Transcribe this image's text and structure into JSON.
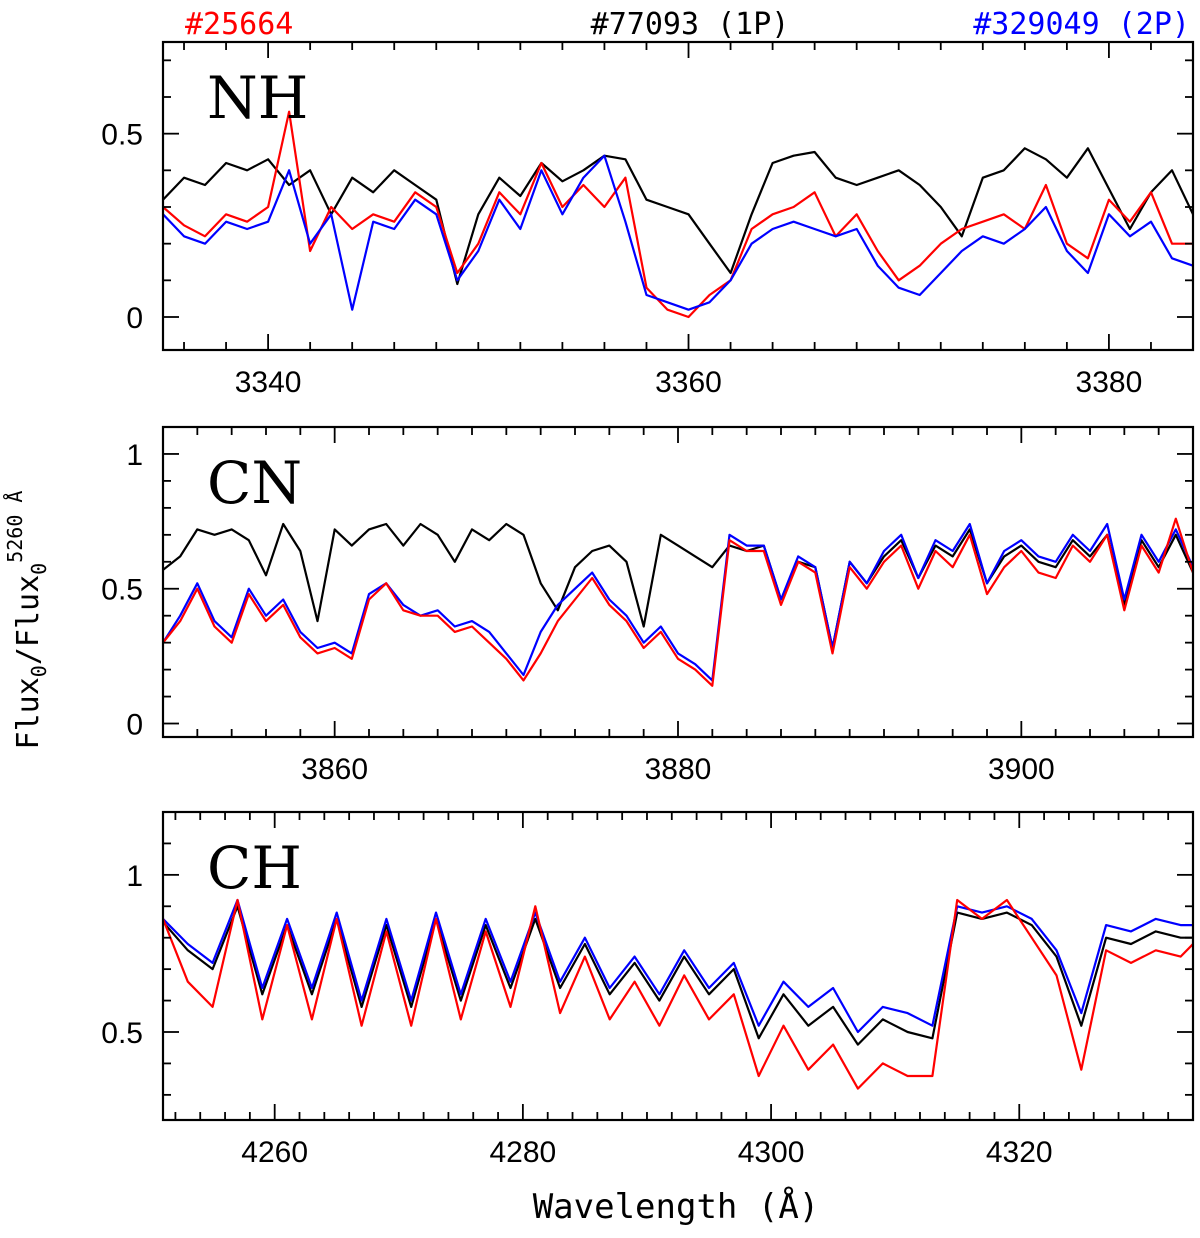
{
  "legend": [
    {
      "name": "#25664",
      "color": "#ff0000"
    },
    {
      "name": "#77093 (1P)",
      "color": "#000000"
    },
    {
      "name": "#329049 (2P)",
      "color": "#0000ff"
    }
  ],
  "ylabel": "Flux0/Flux0 5260 Å",
  "ylabel_parts": {
    "a": "Flux",
    "sub1": "0",
    "slash": "/Flux",
    "sub2": "0",
    "sup": "5260 Å"
  },
  "xlabel": "Wavelength (Å)",
  "chart_data": [
    {
      "type": "line",
      "label": "NH",
      "xlim": [
        3335,
        3384
      ],
      "ylim": [
        -0.09,
        0.75
      ],
      "xticks_major": [
        3340,
        3360,
        3380
      ],
      "xtick_labels": [
        "3340",
        "3360",
        "3380"
      ],
      "xtick_minor_step": 2,
      "yticks_major": [
        0,
        0.5
      ],
      "ytick_labels": [
        "0",
        "0.5"
      ],
      "ytick_minor_step": 0.1,
      "series": [
        {
          "name": "#77093 (1P)",
          "color": "#000000",
          "x": [
            3335,
            3336,
            3337,
            3338,
            3339,
            3340,
            3341,
            3342,
            3343,
            3344,
            3345,
            3346,
            3347,
            3348,
            3349,
            3350,
            3351,
            3352,
            3353,
            3354,
            3355,
            3356,
            3357,
            3358,
            3359,
            3360,
            3361,
            3362,
            3363,
            3364,
            3365,
            3366,
            3367,
            3368,
            3369,
            3370,
            3371,
            3372,
            3373,
            3374,
            3375,
            3376,
            3377,
            3378,
            3379,
            3380,
            3381,
            3382,
            3383,
            3384
          ],
          "y": [
            0.32,
            0.38,
            0.36,
            0.42,
            0.4,
            0.43,
            0.36,
            0.4,
            0.28,
            0.38,
            0.34,
            0.4,
            0.36,
            0.32,
            0.09,
            0.28,
            0.38,
            0.33,
            0.42,
            0.37,
            0.4,
            0.44,
            0.43,
            0.32,
            0.3,
            0.28,
            0.2,
            0.12,
            0.28,
            0.42,
            0.44,
            0.45,
            0.38,
            0.36,
            0.38,
            0.4,
            0.36,
            0.3,
            0.22,
            0.38,
            0.4,
            0.46,
            0.43,
            0.38,
            0.46,
            0.35,
            0.24,
            0.34,
            0.4,
            0.28
          ]
        },
        {
          "name": "#25664",
          "color": "#ff0000",
          "x": [
            3335,
            3336,
            3337,
            3338,
            3339,
            3340,
            3341,
            3342,
            3343,
            3344,
            3345,
            3346,
            3347,
            3348,
            3349,
            3350,
            3351,
            3352,
            3353,
            3354,
            3355,
            3356,
            3357,
            3358,
            3359,
            3360,
            3361,
            3362,
            3363,
            3364,
            3365,
            3366,
            3367,
            3368,
            3369,
            3370,
            3371,
            3372,
            3373,
            3374,
            3375,
            3376,
            3377,
            3378,
            3379,
            3380,
            3381,
            3382,
            3383,
            3384
          ],
          "y": [
            0.3,
            0.25,
            0.22,
            0.28,
            0.26,
            0.3,
            0.56,
            0.18,
            0.3,
            0.24,
            0.28,
            0.26,
            0.34,
            0.3,
            0.12,
            0.2,
            0.34,
            0.28,
            0.42,
            0.3,
            0.36,
            0.3,
            0.38,
            0.08,
            0.02,
            0.0,
            0.06,
            0.1,
            0.24,
            0.28,
            0.3,
            0.34,
            0.22,
            0.28,
            0.18,
            0.1,
            0.14,
            0.2,
            0.24,
            0.26,
            0.28,
            0.24,
            0.36,
            0.2,
            0.16,
            0.32,
            0.26,
            0.34,
            0.2,
            0.2
          ]
        },
        {
          "name": "#329049 (2P)",
          "color": "#0000ff",
          "x": [
            3335,
            3336,
            3337,
            3338,
            3339,
            3340,
            3341,
            3342,
            3343,
            3344,
            3345,
            3346,
            3347,
            3348,
            3349,
            3350,
            3351,
            3352,
            3353,
            3354,
            3355,
            3356,
            3357,
            3358,
            3359,
            3360,
            3361,
            3362,
            3363,
            3364,
            3365,
            3366,
            3367,
            3368,
            3369,
            3370,
            3371,
            3372,
            3373,
            3374,
            3375,
            3376,
            3377,
            3378,
            3379,
            3380,
            3381,
            3382,
            3383,
            3384
          ],
          "y": [
            0.28,
            0.22,
            0.2,
            0.26,
            0.24,
            0.26,
            0.4,
            0.2,
            0.28,
            0.02,
            0.26,
            0.24,
            0.32,
            0.28,
            0.1,
            0.18,
            0.32,
            0.24,
            0.4,
            0.28,
            0.38,
            0.44,
            0.26,
            0.06,
            0.04,
            0.02,
            0.04,
            0.1,
            0.2,
            0.24,
            0.26,
            0.24,
            0.22,
            0.24,
            0.14,
            0.08,
            0.06,
            0.12,
            0.18,
            0.22,
            0.2,
            0.24,
            0.3,
            0.18,
            0.12,
            0.28,
            0.22,
            0.26,
            0.16,
            0.14
          ]
        }
      ]
    },
    {
      "type": "line",
      "label": "CN",
      "xlim": [
        3850,
        3910
      ],
      "ylim": [
        -0.05,
        1.1
      ],
      "xticks_major": [
        3860,
        3880,
        3900
      ],
      "xtick_labels": [
        "3860",
        "3880",
        "3900"
      ],
      "xtick_minor_step": 2,
      "yticks_major": [
        0,
        0.5,
        1
      ],
      "ytick_labels": [
        "0",
        "0.5",
        "1"
      ],
      "ytick_minor_step": 0.1,
      "series": [
        {
          "name": "#77093 (1P)",
          "color": "#000000",
          "x": [
            3850,
            3851,
            3852,
            3853,
            3854,
            3855,
            3856,
            3857,
            3858,
            3859,
            3860,
            3861,
            3862,
            3863,
            3864,
            3865,
            3866,
            3867,
            3868,
            3869,
            3870,
            3871,
            3872,
            3873,
            3874,
            3875,
            3876,
            3877,
            3878,
            3879,
            3880,
            3881,
            3882,
            3883,
            3884,
            3885,
            3886,
            3887,
            3888,
            3889,
            3890,
            3891,
            3892,
            3893,
            3894,
            3895,
            3896,
            3897,
            3898,
            3899,
            3900,
            3901,
            3902,
            3903,
            3904,
            3905,
            3906,
            3907,
            3908,
            3909,
            3910
          ],
          "y": [
            0.57,
            0.62,
            0.72,
            0.7,
            0.72,
            0.68,
            0.55,
            0.74,
            0.64,
            0.38,
            0.72,
            0.66,
            0.72,
            0.74,
            0.66,
            0.74,
            0.7,
            0.6,
            0.72,
            0.68,
            0.74,
            0.7,
            0.52,
            0.42,
            0.58,
            0.64,
            0.66,
            0.6,
            0.36,
            0.7,
            0.66,
            0.62,
            0.58,
            0.66,
            0.64,
            0.66,
            0.46,
            0.6,
            0.58,
            0.28,
            0.6,
            0.52,
            0.62,
            0.68,
            0.54,
            0.66,
            0.62,
            0.72,
            0.52,
            0.62,
            0.66,
            0.6,
            0.58,
            0.68,
            0.62,
            0.7,
            0.44,
            0.68,
            0.58,
            0.7,
            0.56
          ]
        },
        {
          "name": "#329049 (2P)",
          "color": "#0000ff",
          "x": [
            3850,
            3851,
            3852,
            3853,
            3854,
            3855,
            3856,
            3857,
            3858,
            3859,
            3860,
            3861,
            3862,
            3863,
            3864,
            3865,
            3866,
            3867,
            3868,
            3869,
            3870,
            3871,
            3872,
            3873,
            3874,
            3875,
            3876,
            3877,
            3878,
            3879,
            3880,
            3881,
            3882,
            3883,
            3884,
            3885,
            3886,
            3887,
            3888,
            3889,
            3890,
            3891,
            3892,
            3893,
            3894,
            3895,
            3896,
            3897,
            3898,
            3899,
            3900,
            3901,
            3902,
            3903,
            3904,
            3905,
            3906,
            3907,
            3908,
            3909,
            3910
          ],
          "y": [
            0.3,
            0.4,
            0.52,
            0.38,
            0.32,
            0.5,
            0.4,
            0.46,
            0.34,
            0.28,
            0.3,
            0.26,
            0.48,
            0.52,
            0.44,
            0.4,
            0.42,
            0.36,
            0.38,
            0.34,
            0.26,
            0.18,
            0.34,
            0.44,
            0.5,
            0.56,
            0.46,
            0.4,
            0.3,
            0.36,
            0.26,
            0.22,
            0.16,
            0.7,
            0.66,
            0.66,
            0.46,
            0.62,
            0.58,
            0.28,
            0.6,
            0.52,
            0.64,
            0.7,
            0.54,
            0.68,
            0.64,
            0.74,
            0.52,
            0.64,
            0.68,
            0.62,
            0.6,
            0.7,
            0.64,
            0.74,
            0.46,
            0.7,
            0.6,
            0.72,
            0.58
          ]
        },
        {
          "name": "#25664",
          "color": "#ff0000",
          "x": [
            3850,
            3851,
            3852,
            3853,
            3854,
            3855,
            3856,
            3857,
            3858,
            3859,
            3860,
            3861,
            3862,
            3863,
            3864,
            3865,
            3866,
            3867,
            3868,
            3869,
            3870,
            3871,
            3872,
            3873,
            3874,
            3875,
            3876,
            3877,
            3878,
            3879,
            3880,
            3881,
            3882,
            3883,
            3884,
            3885,
            3886,
            3887,
            3888,
            3889,
            3890,
            3891,
            3892,
            3893,
            3894,
            3895,
            3896,
            3897,
            3898,
            3899,
            3900,
            3901,
            3902,
            3903,
            3904,
            3905,
            3906,
            3907,
            3908,
            3909,
            3910
          ],
          "y": [
            0.3,
            0.38,
            0.5,
            0.36,
            0.3,
            0.48,
            0.38,
            0.44,
            0.32,
            0.26,
            0.28,
            0.24,
            0.46,
            0.52,
            0.42,
            0.4,
            0.4,
            0.34,
            0.36,
            0.3,
            0.24,
            0.16,
            0.26,
            0.38,
            0.46,
            0.54,
            0.44,
            0.38,
            0.28,
            0.34,
            0.24,
            0.2,
            0.14,
            0.68,
            0.64,
            0.64,
            0.44,
            0.6,
            0.56,
            0.26,
            0.58,
            0.5,
            0.6,
            0.66,
            0.5,
            0.64,
            0.58,
            0.7,
            0.48,
            0.58,
            0.64,
            0.56,
            0.54,
            0.66,
            0.6,
            0.7,
            0.42,
            0.66,
            0.56,
            0.76,
            0.56
          ]
        }
      ]
    },
    {
      "type": "line",
      "label": "CH",
      "xlim": [
        4251,
        4334
      ],
      "ylim": [
        0.22,
        1.2
      ],
      "xticks_major": [
        4260,
        4280,
        4300,
        4320
      ],
      "xtick_labels": [
        "4260",
        "4280",
        "4300",
        "4320"
      ],
      "xtick_minor_step": 2,
      "yticks_major": [
        0.5,
        1
      ],
      "ytick_labels": [
        "0.5",
        "1"
      ],
      "ytick_minor_step": 0.1,
      "series": [
        {
          "name": "#77093 (1P)",
          "color": "#000000",
          "x": [
            4251,
            4253,
            4255,
            4257,
            4259,
            4261,
            4263,
            4265,
            4267,
            4269,
            4271,
            4273,
            4275,
            4277,
            4279,
            4281,
            4283,
            4285,
            4287,
            4289,
            4291,
            4293,
            4295,
            4297,
            4299,
            4301,
            4303,
            4305,
            4307,
            4309,
            4311,
            4313,
            4315,
            4317,
            4319,
            4321,
            4323,
            4325,
            4327,
            4329,
            4331,
            4333,
            4334
          ],
          "y": [
            0.85,
            0.76,
            0.7,
            0.9,
            0.62,
            0.84,
            0.62,
            0.86,
            0.58,
            0.84,
            0.58,
            0.86,
            0.6,
            0.84,
            0.64,
            0.86,
            0.64,
            0.78,
            0.62,
            0.72,
            0.6,
            0.74,
            0.62,
            0.7,
            0.48,
            0.62,
            0.52,
            0.58,
            0.46,
            0.54,
            0.5,
            0.48,
            0.88,
            0.86,
            0.88,
            0.84,
            0.74,
            0.52,
            0.8,
            0.78,
            0.82,
            0.8,
            0.8
          ]
        },
        {
          "name": "#329049 (2P)",
          "color": "#0000ff",
          "x": [
            4251,
            4253,
            4255,
            4257,
            4259,
            4261,
            4263,
            4265,
            4267,
            4269,
            4271,
            4273,
            4275,
            4277,
            4279,
            4281,
            4283,
            4285,
            4287,
            4289,
            4291,
            4293,
            4295,
            4297,
            4299,
            4301,
            4303,
            4305,
            4307,
            4309,
            4311,
            4313,
            4315,
            4317,
            4319,
            4321,
            4323,
            4325,
            4327,
            4329,
            4331,
            4333,
            4334
          ],
          "y": [
            0.86,
            0.78,
            0.72,
            0.92,
            0.64,
            0.86,
            0.64,
            0.88,
            0.6,
            0.86,
            0.6,
            0.88,
            0.62,
            0.86,
            0.66,
            0.88,
            0.66,
            0.8,
            0.64,
            0.74,
            0.62,
            0.76,
            0.64,
            0.72,
            0.52,
            0.66,
            0.58,
            0.64,
            0.5,
            0.58,
            0.56,
            0.52,
            0.9,
            0.88,
            0.9,
            0.86,
            0.76,
            0.56,
            0.84,
            0.82,
            0.86,
            0.84,
            0.84
          ]
        },
        {
          "name": "#25664",
          "color": "#ff0000",
          "x": [
            4251,
            4253,
            4255,
            4257,
            4259,
            4261,
            4263,
            4265,
            4267,
            4269,
            4271,
            4273,
            4275,
            4277,
            4279,
            4281,
            4283,
            4285,
            4287,
            4289,
            4291,
            4293,
            4295,
            4297,
            4299,
            4301,
            4303,
            4305,
            4307,
            4309,
            4311,
            4313,
            4315,
            4317,
            4319,
            4321,
            4323,
            4325,
            4327,
            4329,
            4331,
            4333,
            4334
          ],
          "y": [
            0.86,
            0.66,
            0.58,
            0.92,
            0.54,
            0.84,
            0.54,
            0.86,
            0.52,
            0.82,
            0.52,
            0.86,
            0.54,
            0.82,
            0.58,
            0.9,
            0.56,
            0.74,
            0.54,
            0.66,
            0.52,
            0.68,
            0.54,
            0.62,
            0.36,
            0.52,
            0.38,
            0.46,
            0.32,
            0.4,
            0.36,
            0.36,
            0.92,
            0.86,
            0.92,
            0.8,
            0.68,
            0.38,
            0.76,
            0.72,
            0.76,
            0.74,
            0.78
          ]
        }
      ]
    }
  ]
}
